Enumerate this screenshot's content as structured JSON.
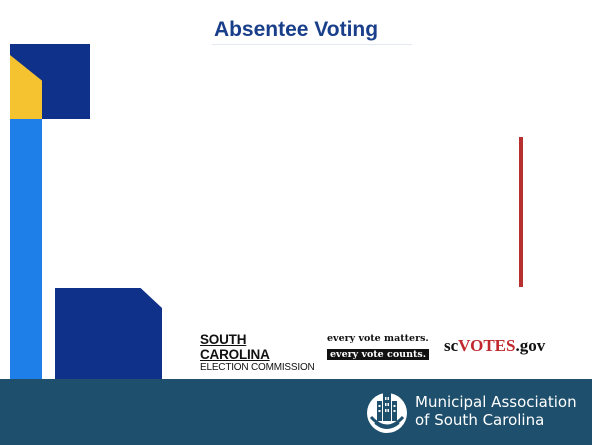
{
  "slide": {
    "title": "Absentee Voting",
    "accent_colors": {
      "navy": "#10318a",
      "yellow": "#f5c230",
      "blue": "#1e7fe8",
      "red": "#b5302e",
      "footer": "#1e4f6c"
    }
  },
  "logos": {
    "scec": {
      "line1": "SOUTH CAROLINA",
      "line2": "ELECTION COMMISSION"
    },
    "every_vote": {
      "line1": "every vote matters.",
      "line2": "every vote counts."
    },
    "scvotes": {
      "prefix": "sc",
      "highlight": "VOTES",
      "suffix": ".gov"
    }
  },
  "footer": {
    "icon": "municipal-building-icon",
    "org_line1": "Municipal Association",
    "org_line2": "of South Carolina"
  }
}
